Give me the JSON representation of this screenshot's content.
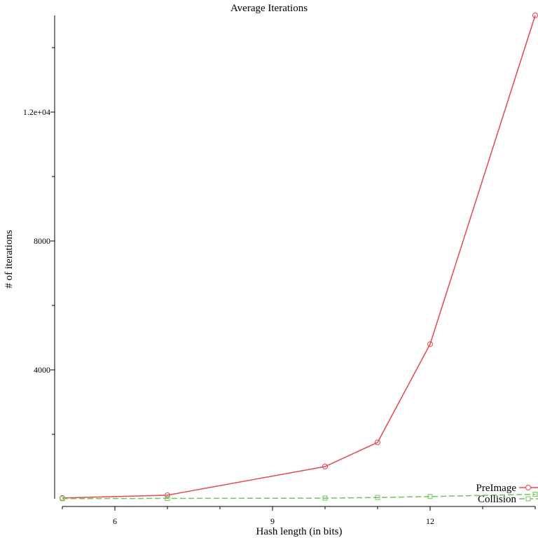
{
  "chart_data": {
    "type": "line",
    "title": "Average Iterations",
    "xlabel": "Hash length (in bits)",
    "ylabel": "# of iterations",
    "x": [
      5,
      7,
      10,
      11,
      12,
      14
    ],
    "xlim": [
      5,
      14
    ],
    "ylim": [
      0,
      15000
    ],
    "x_ticks": [
      6,
      9,
      12
    ],
    "x_minor_ticks": [
      5,
      7,
      8,
      10,
      11,
      13,
      14
    ],
    "y_ticks": [
      4000,
      8000,
      12000
    ],
    "y_tick_labels": [
      "4000",
      "8000",
      "1.2e+04"
    ],
    "y_minor_ticks": [
      2000,
      6000,
      10000,
      14000
    ],
    "grid": false,
    "legend_position": "bottom-right",
    "series": [
      {
        "name": "PreImage",
        "color": "#e8474f",
        "marker": "circle",
        "dash": "solid",
        "values": [
          25,
          110,
          1000,
          1750,
          4800,
          15000
        ]
      },
      {
        "name": "Collision",
        "color": "#71c45a",
        "marker": "square",
        "dash": "dashed",
        "values": [
          5,
          10,
          20,
          40,
          70,
          140
        ]
      }
    ]
  }
}
